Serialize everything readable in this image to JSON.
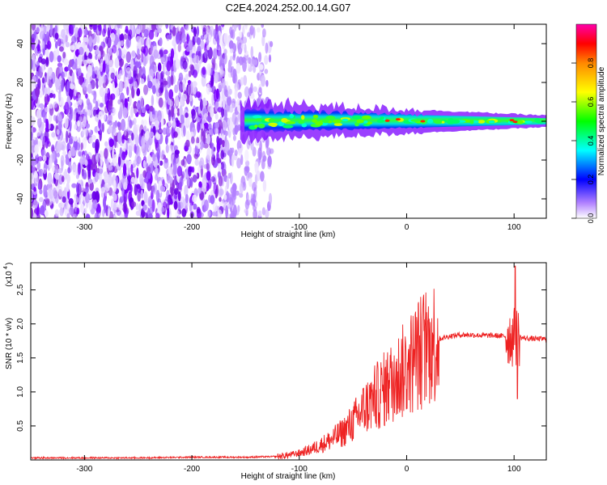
{
  "title": "C2E4.2024.252.00.14.G07",
  "chart_data": [
    {
      "type": "heatmap",
      "xlabel": "Height of straight line (km)",
      "ylabel": "Frequency (Hz)",
      "xlim": [
        -350,
        130
      ],
      "ylim": [
        -50,
        50
      ],
      "xticks": [
        -300,
        -200,
        -100,
        0,
        100
      ],
      "yticks": [
        -40,
        -20,
        0,
        20,
        40
      ],
      "colorbar": {
        "label": "Normalized spectral amplitude",
        "range": [
          0,
          1
        ],
        "ticks": [
          0.0,
          0.2,
          0.4,
          0.6,
          0.8
        ]
      },
      "regions": [
        {
          "x": [
            -350,
            -125
          ],
          "freq": [
            -50,
            50
          ],
          "amplitude": [
            0.0,
            0.25
          ],
          "pattern": "diffuse noise"
        },
        {
          "x": [
            -155,
            130
          ],
          "freq_center": 0,
          "freq_halfwidth": [
            10,
            3
          ],
          "amplitude": [
            0.3,
            0.8
          ],
          "pattern": "narrow band"
        }
      ],
      "colors": [
        "#ffffff",
        "#7a00ff",
        "#0000ff",
        "#00ffff",
        "#00ff00",
        "#ffff00",
        "#ff0000",
        "#ff00ff"
      ]
    },
    {
      "type": "line",
      "xlabel": "Height of straight line (km)",
      "ylabel": "SNR (10 * v/v)",
      "scale_label": "(x10",
      "scale_exp": "4",
      "xlim": [
        -350,
        130
      ],
      "ylim": [
        0,
        2.9
      ],
      "xticks": [
        -300,
        -200,
        -100,
        0,
        100
      ],
      "yticks": [
        0.5,
        1.0,
        1.5,
        2.0,
        2.5
      ],
      "series": [
        {
          "color": "#ee2222",
          "x": [
            -350,
            -300,
            -250,
            -200,
            -150,
            -120,
            -110,
            -100,
            -90,
            -80,
            -70,
            -60,
            -50,
            -40,
            -30,
            -20,
            -10,
            0,
            10,
            20,
            30,
            40,
            50,
            60,
            70,
            80,
            90,
            95,
            100,
            105,
            110,
            120,
            130
          ],
          "y": [
            0.03,
            0.03,
            0.03,
            0.04,
            0.04,
            0.05,
            0.07,
            0.1,
            0.15,
            0.22,
            0.3,
            0.4,
            0.55,
            0.75,
            0.9,
            1.05,
            1.2,
            1.35,
            1.55,
            1.7,
            1.78,
            1.82,
            1.84,
            1.84,
            1.83,
            1.83,
            1.82,
            1.82,
            1.8,
            1.8,
            1.79,
            1.78,
            1.78
          ]
        }
      ]
    }
  ]
}
